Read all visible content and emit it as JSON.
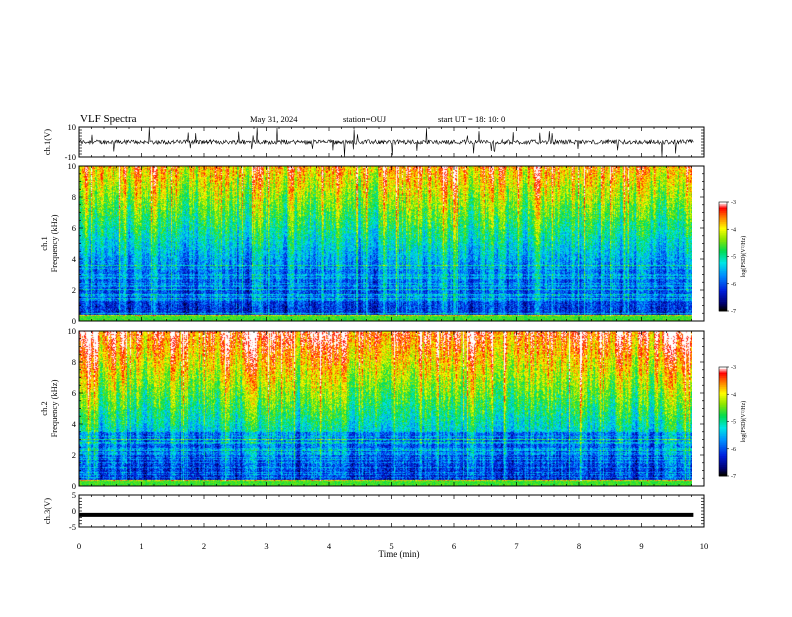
{
  "header": {
    "title": "VLF Spectra",
    "date": "May 31, 2024",
    "station": "station=OUJ",
    "start": "start  UT =   18: 10: 0"
  },
  "chart_data": {
    "type": "heatmap",
    "xlabel": "Time  (min)",
    "xlim": [
      0,
      10
    ],
    "xticks": [
      "0",
      "1",
      "2",
      "3",
      "4",
      "5",
      "6",
      "7",
      "8",
      "9",
      "10"
    ],
    "data_end_min": 9.83,
    "panels": [
      {
        "id": "ch1-waveform",
        "type": "line",
        "ylabel": "ch.1(V)",
        "ylim": [
          -10,
          10
        ],
        "yticks": [
          "10",
          "-10"
        ],
        "baseline": 0,
        "typical_amplitude": 1.5
      },
      {
        "id": "ch1-spectrogram",
        "type": "heatmap",
        "ylabel": "ch.1\nFrequency  (kHz)",
        "ylabel_top": "ch.1",
        "ylabel_bottom": "Frequency  (kHz)",
        "ylim": [
          0,
          10
        ],
        "yticks": [
          "0",
          "2",
          "4",
          "6",
          "8",
          "10"
        ],
        "colorbar": {
          "label": "log(PSD)(V²/Hz)",
          "range": [
            -7,
            -3
          ],
          "ticks": [
            "-3",
            "-4",
            "-5",
            "-6",
            "-7"
          ]
        }
      },
      {
        "id": "ch2-spectrogram",
        "type": "heatmap",
        "ylabel": "ch.2\nFrequency  (kHz)",
        "ylabel_top": "ch.2",
        "ylabel_bottom": "Frequency  (kHz)",
        "ylim": [
          0,
          10
        ],
        "yticks": [
          "0",
          "2",
          "4",
          "6",
          "8",
          "10"
        ],
        "colorbar": {
          "label": "log(PSD)(V²/Hz)",
          "range": [
            -7,
            -3
          ],
          "ticks": [
            "-3",
            "-4",
            "-5",
            "-6",
            "-7"
          ]
        }
      },
      {
        "id": "ch3-waveform",
        "type": "line",
        "ylabel": "ch.3(V)",
        "ylim": [
          -5,
          5
        ],
        "yticks": [
          "5",
          "0",
          "-5"
        ],
        "constant_value": -1.2
      }
    ]
  }
}
